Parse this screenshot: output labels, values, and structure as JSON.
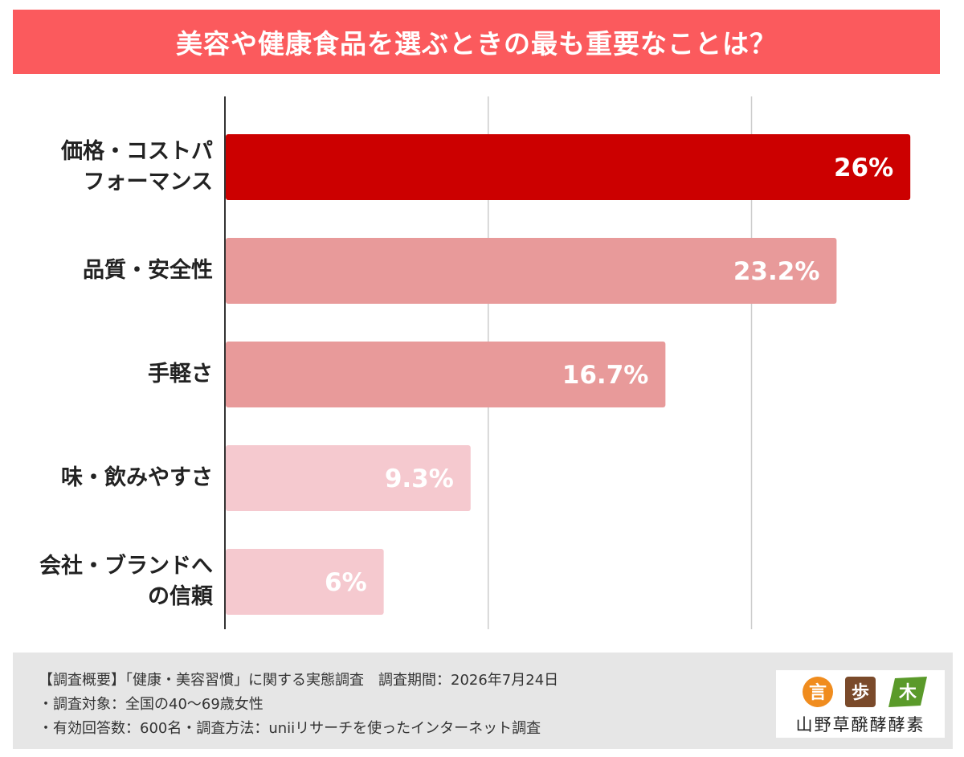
{
  "title": "美容や健康食品を選ぶときの最も重要なことは？",
  "chart_data": {
    "type": "bar",
    "orientation": "horizontal",
    "categories": [
      [
        "価格・コストパ",
        "フォーマンス"
      ],
      [
        "品質・安全性"
      ],
      [
        "手軽さ"
      ],
      [
        "味・飲みやすさ"
      ],
      [
        "会社・ブランドへ",
        "の信頼"
      ]
    ],
    "values": [
      26,
      23.2,
      16.7,
      9.3,
      6
    ],
    "value_labels": [
      "26%",
      "23.2%",
      "16.7%",
      "9.3%",
      "6%"
    ],
    "bar_colors": [
      "#cc0000",
      "#e89a9a",
      "#e89a9a",
      "#f5c9cf",
      "#f5c9cf"
    ],
    "xlim": [
      0,
      26.3
    ],
    "grid": true,
    "legend": "none"
  },
  "footer": {
    "lines": [
      "【調査概要】「健康・美容習慣」に関する実態調査　調査期間：2026年7月24日",
      "・調査対象：全国の40〜69歳女性",
      "・有効回答数：600名・調査方法：uniiリサーチを使ったインターネット調査"
    ],
    "logo": {
      "marks": [
        "言",
        "歩",
        "木"
      ],
      "mark_colors": [
        "#f08c1e",
        "#7a4a2a",
        "#5a9a2a"
      ],
      "text": "山野草醗酵酵素"
    }
  },
  "colors": {
    "title_bg": "#fb5a5d",
    "grid": "#cccccc",
    "axis": "#333333"
  }
}
